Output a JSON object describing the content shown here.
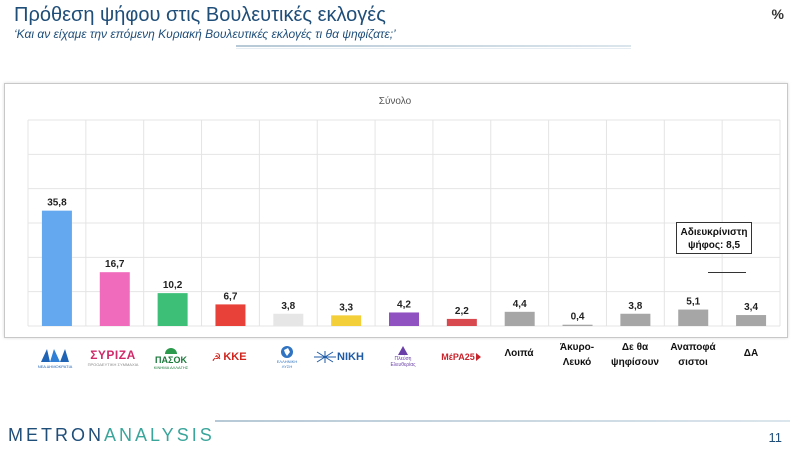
{
  "header": {
    "title": "Πρόθεση ψήφου στις Βουλευτικές εκλογές",
    "subtitle": "‘Και αν είχαμε την επόμενη Κυριακή Βουλευτικές εκλογές τι θα ψηφίζατε;’",
    "unit": "%"
  },
  "chart_data": {
    "type": "bar",
    "title": "Σύνολο",
    "xlabel": "",
    "ylabel": "",
    "categories": [
      "ΝΔ",
      "ΣΥΡΙΖΑ",
      "ΠΑΣΟΚ",
      "ΚΚΕ",
      "Ελληνική Λύση",
      "ΝΙΚΗ",
      "Πλεύση Ελευθερίας",
      "ΜέΡΑ25",
      "Λοιπά",
      "Άκυρο-Λευκό",
      "Δε θα ψηφίσουν",
      "Αναποφάσιστοι",
      "ΔΑ"
    ],
    "values": [
      35.8,
      16.7,
      10.2,
      6.7,
      3.8,
      3.3,
      4.2,
      2.2,
      4.4,
      0.4,
      3.8,
      5.1,
      3.4
    ],
    "value_labels": [
      "35,8",
      "16,7",
      "10,2",
      "6,7",
      "3,8",
      "3,3",
      "4,2",
      "2,2",
      "4,4",
      "0,4",
      "3,8",
      "5,1",
      "3,4"
    ],
    "colors": [
      "#64a8f0",
      "#f06bbb",
      "#3dbf78",
      "#e8413a",
      "#e6e6e6",
      "#f3cf3a",
      "#8f52c0",
      "#d8484f",
      "#a6a6a6",
      "#a6a6a6",
      "#a6a6a6",
      "#a6a6a6",
      "#a6a6a6"
    ],
    "ylim": [
      0,
      40
    ],
    "grid": true,
    "annotation": "Αδιευκρίνιστη ψήφος: 8,5"
  },
  "logos": {
    "nd": "ΝΔ",
    "nd_sub": "ΝΕΑ ΔΗΜΟΚΡΑΤΙΑ",
    "syriza": "ΣΥΡΙΖΑ",
    "syriza_sub": "ΠΡΟΟΔΕΥΤΙΚΗ ΣΥΜΜΑΧΙΑ",
    "pasok": "ΠΑΣΟΚ",
    "pasok_sub": "ΚΙΝΗΜΑ ΑΛΛΑΓΗΣ",
    "kke": "ΚΚΕ",
    "el_line1": "ΕΛΛΗΝΙΚΗ",
    "el_line2": "ΛΥΣΗ",
    "niki": "ΝΙΚΗ",
    "plefsi1": "Πλεύση",
    "plefsi2": "Ελευθερίας",
    "mera": "ΜέΡΑ25"
  },
  "text_labels": {
    "loipa": "Λοιπά",
    "akyro1": "Άκυρο-",
    "akyro2": "Λευκό",
    "de1": "Δε θα",
    "de2": "ψηφίσουν",
    "anap1": "Αναποφά",
    "anap2": "σιστοι",
    "da": "ΔΑ"
  },
  "callout": {
    "line1": "Αδιευκρίνιστη",
    "line2": "ψήφος: 8,5"
  },
  "footer": {
    "brand_a": "METRON",
    "brand_b": "ANALYSIS",
    "page": "11"
  }
}
